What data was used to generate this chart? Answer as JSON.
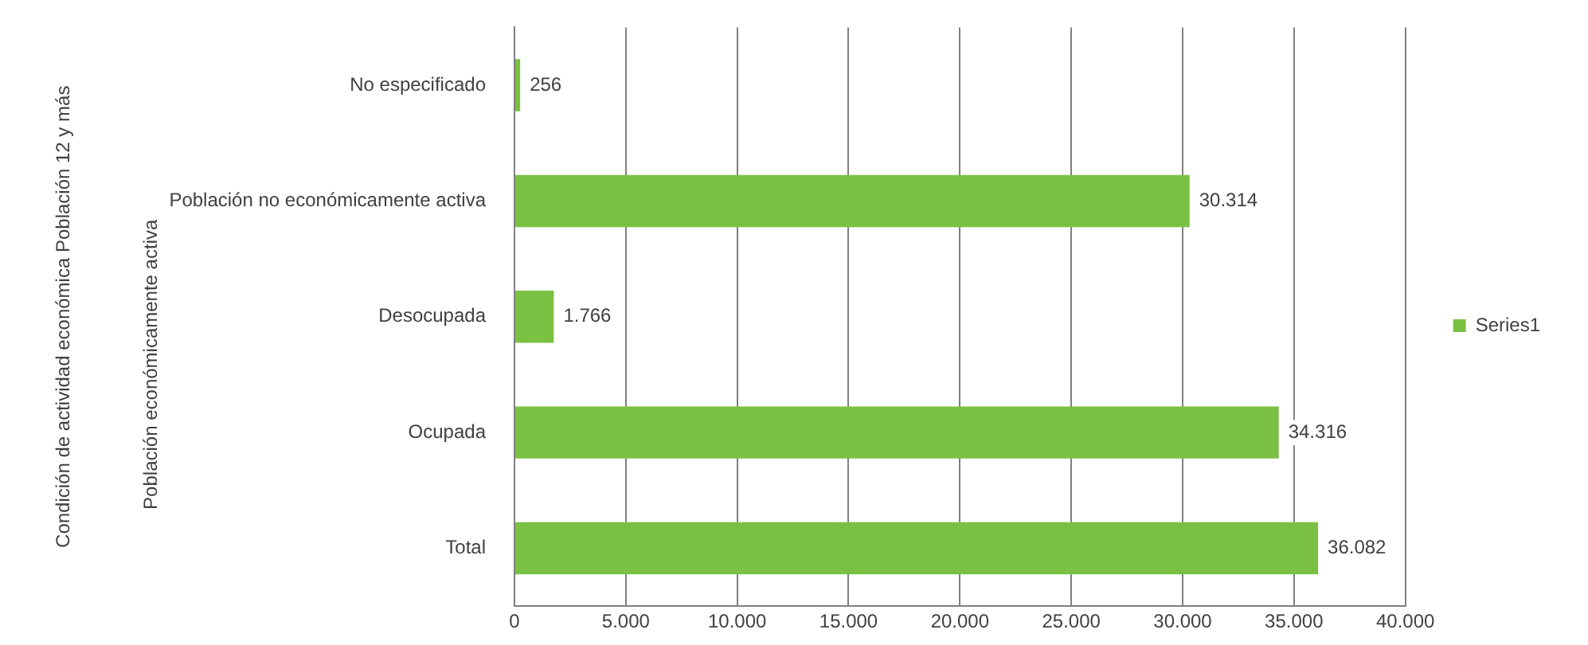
{
  "chart_data": {
    "type": "bar",
    "orientation": "horizontal",
    "ylabel": "Condición de actividad económica Población 12 y más",
    "annotations": [
      "Población económicamente activa"
    ],
    "categories": [
      "No especificado",
      "Población no económicamente activa",
      "Desocupada",
      "Ocupada",
      "Total"
    ],
    "series": [
      {
        "name": "Series1",
        "color": "#7ac143",
        "values": [
          256,
          30314,
          1766,
          34316,
          36082
        ],
        "value_labels": [
          "256",
          "30.314",
          "1.766",
          "34.316",
          "36.082"
        ]
      }
    ],
    "xlim": [
      0,
      40000
    ],
    "xticks": [
      0,
      {
        "value": 5000,
        "label": "5.000"
      },
      {
        "value": 10000,
        "label": "10.000"
      },
      {
        "value": 15000,
        "label": "15.000"
      },
      {
        "value": 20000,
        "label": "20.000"
      },
      {
        "value": 25000,
        "label": "25.000"
      },
      {
        "value": 30000,
        "label": "30.000"
      },
      {
        "value": 35000,
        "label": "35.000"
      },
      {
        "value": 40000,
        "label": "40.000"
      }
    ],
    "grid": "x",
    "legend": "right"
  }
}
